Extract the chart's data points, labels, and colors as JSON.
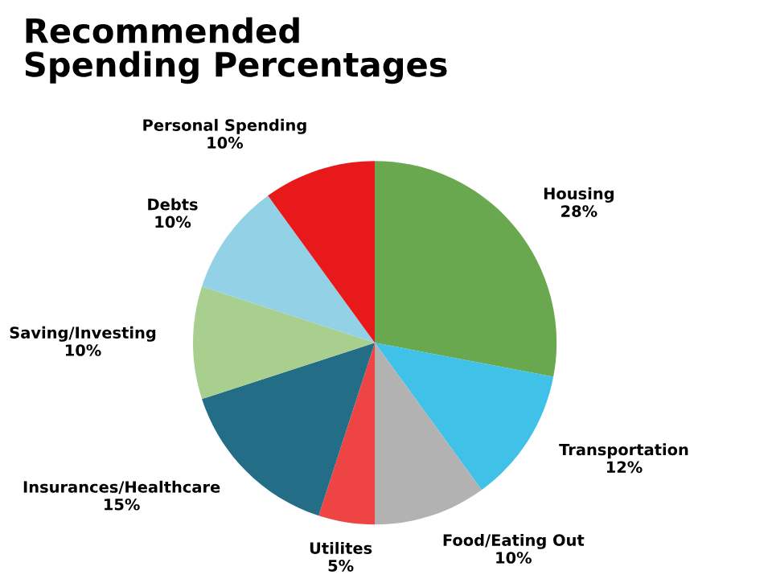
{
  "chart_data": {
    "type": "pie",
    "title": "Recommended\nSpending Percentages",
    "categories": [
      "Housing",
      "Transportation",
      "Food/Eating Out",
      "Utilites",
      "Insurances/Healthcare",
      "Saving/Investing",
      "Debts",
      "Personal Spending"
    ],
    "values": [
      28,
      12,
      10,
      5,
      15,
      10,
      10,
      10
    ],
    "value_labels": [
      "28%",
      "12%",
      "10%",
      "5%",
      "15%",
      "10%",
      "10%",
      "10%"
    ],
    "colors": [
      "#6aa84f",
      "#3fc1e8",
      "#b2b2b2",
      "#ef4444",
      "#236e86",
      "#a9cf8f",
      "#93d1e6",
      "#e8191b"
    ]
  }
}
